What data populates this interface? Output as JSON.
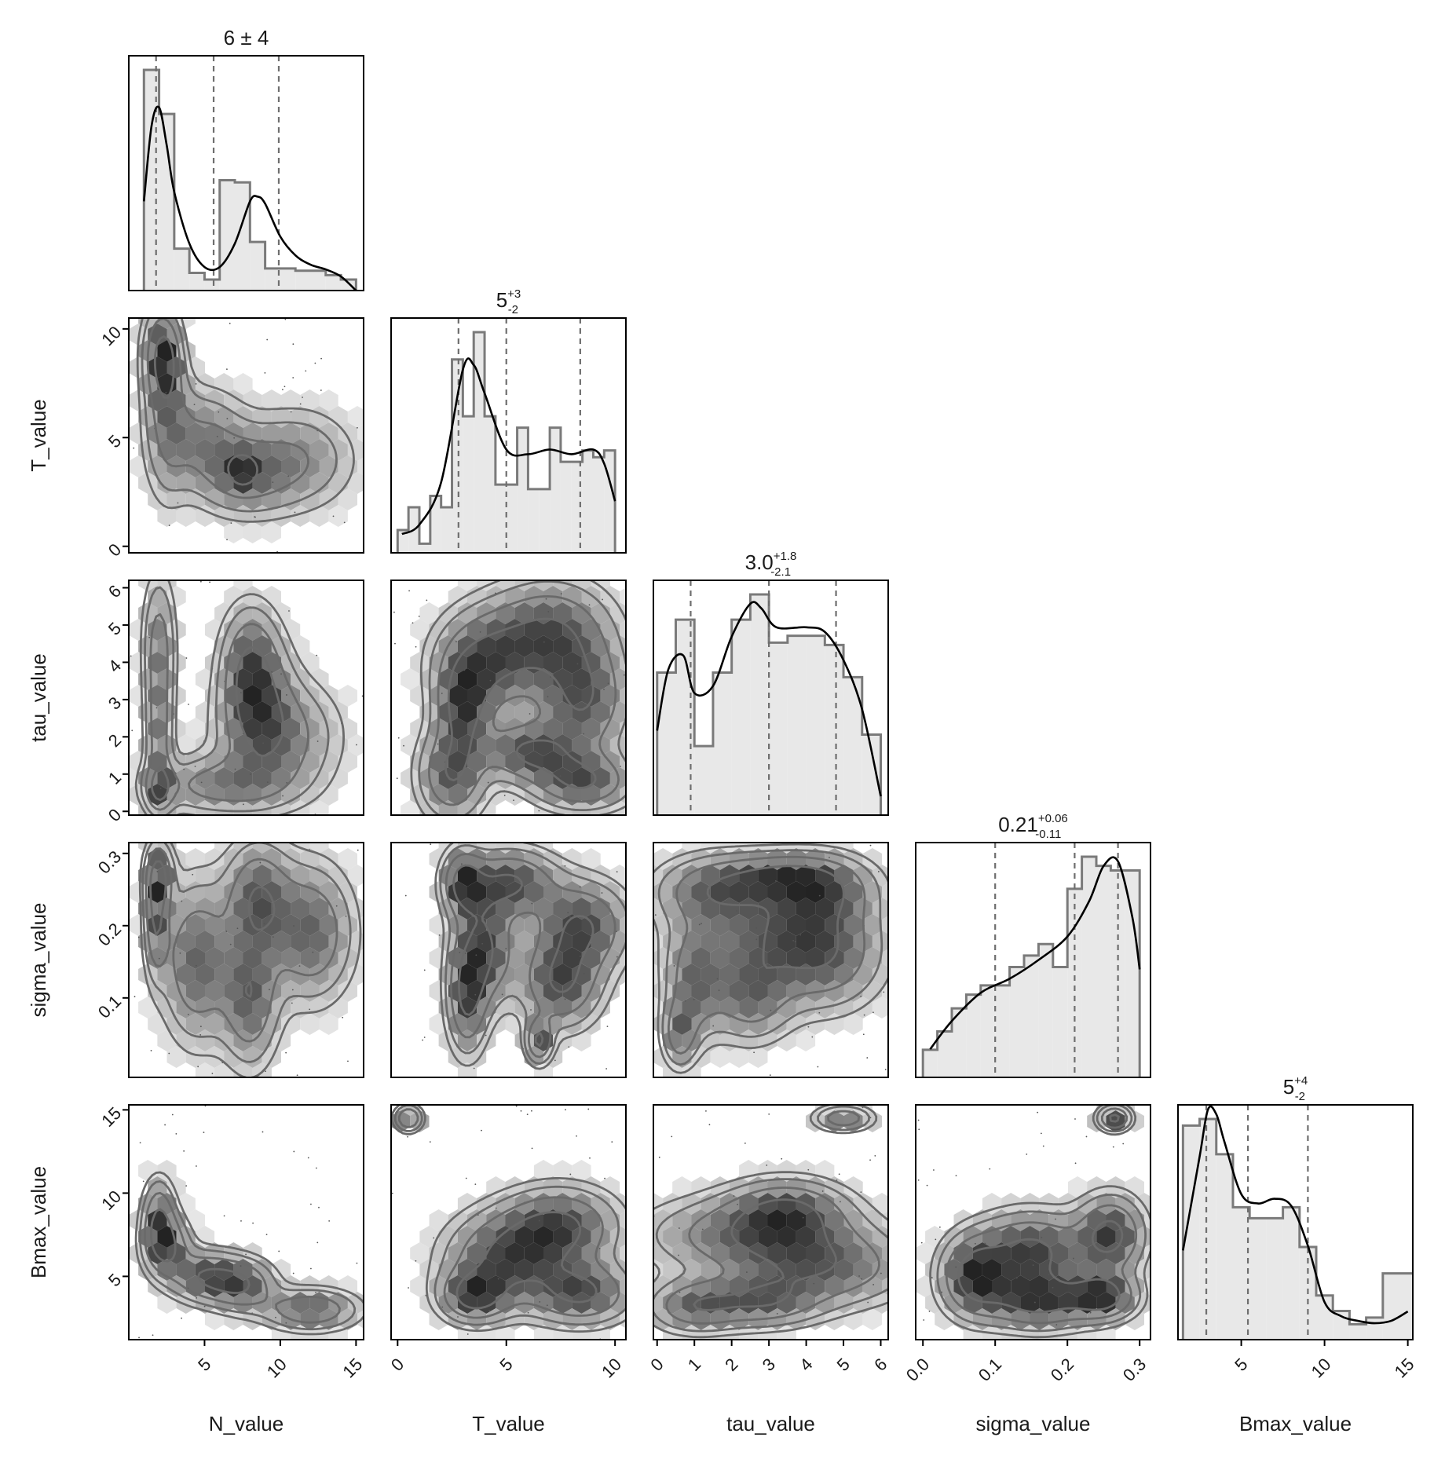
{
  "chart_data": {
    "type": "corner",
    "parameters": [
      {
        "name": "N_value",
        "range": [
          0.0,
          15.5
        ],
        "ticks": [
          5,
          10,
          15
        ],
        "tick_labels": [
          "5",
          "10",
          "15"
        ]
      },
      {
        "name": "T_value",
        "range": [
          -0.3,
          10.5
        ],
        "ticks": [
          0,
          5,
          10
        ],
        "tick_labels": [
          "0",
          "5",
          "10"
        ]
      },
      {
        "name": "tau_value",
        "range": [
          -0.1,
          6.2
        ],
        "ticks": [
          0,
          1,
          2,
          3,
          4,
          5,
          6
        ],
        "tick_labels": [
          "0",
          "1",
          "2",
          "3",
          "4",
          "5",
          "6"
        ]
      },
      {
        "name": "sigma_value",
        "range": [
          -0.01,
          0.315
        ],
        "ticks": [
          0.0,
          0.1,
          0.2,
          0.3
        ],
        "tick_labels": [
          "0.0",
          "0.1",
          "0.2",
          "0.3"
        ]
      },
      {
        "name": "Bmax_value",
        "range": [
          1.2,
          15.3
        ],
        "ticks": [
          5,
          10,
          15
        ],
        "tick_labels": [
          "5",
          "10",
          "15"
        ]
      }
    ],
    "row_tick_labels": {
      "T_value": {
        "ticks": [
          0,
          5,
          10
        ],
        "tick_labels": [
          "0",
          "5",
          "10"
        ]
      },
      "tau_value": {
        "ticks": [
          0,
          1,
          2,
          3,
          4,
          5,
          6
        ],
        "tick_labels": [
          "0",
          "1",
          "2",
          "3",
          "4",
          "5",
          "6"
        ]
      },
      "sigma_value": {
        "ticks": [
          0.1,
          0.2,
          0.3
        ],
        "tick_labels": [
          "0.1",
          "0.2",
          "0.3"
        ]
      },
      "Bmax_value": {
        "ticks": [
          5,
          10,
          15
        ],
        "tick_labels": [
          "5",
          "10",
          "15"
        ]
      }
    },
    "diagonal_titles": [
      {
        "main": "6 ± 4",
        "plus": "",
        "minus": ""
      },
      {
        "main": "5",
        "plus": "+3",
        "minus": "-2"
      },
      {
        "main": "3.0",
        "plus": "+1.8",
        "minus": "-2.1"
      },
      {
        "main": "0.21",
        "plus": "+0.06",
        "minus": "-0.11"
      },
      {
        "main": "5",
        "plus": "+4",
        "minus": "-2"
      }
    ],
    "quantiles": [
      [
        1.8,
        5.6,
        9.9
      ],
      [
        2.8,
        5.0,
        8.4
      ],
      [
        0.9,
        3.0,
        4.8
      ],
      [
        0.1,
        0.21,
        0.27
      ],
      [
        2.9,
        5.4,
        9.0
      ]
    ],
    "histograms": [
      {
        "edges": [
          1,
          2,
          3,
          4,
          5,
          6,
          7,
          8,
          9,
          10,
          11,
          12,
          13,
          14,
          15
        ],
        "counts": [
          1.0,
          0.8,
          0.19,
          0.08,
          0.05,
          0.5,
          0.49,
          0.22,
          0.1,
          0.1,
          0.09,
          0.09,
          0.07,
          0.05
        ]
      },
      {
        "edges": [
          0,
          0.5,
          1,
          1.5,
          2,
          2.5,
          3,
          3.5,
          4,
          4.5,
          5,
          5.5,
          6,
          6.5,
          7,
          7.5,
          8,
          8.5,
          9,
          9.5,
          10
        ],
        "counts": [
          0.1,
          0.2,
          0.04,
          0.25,
          0.2,
          0.85,
          0.6,
          0.97,
          0.6,
          0.3,
          0.3,
          0.55,
          0.28,
          0.28,
          0.55,
          0.4,
          0.4,
          0.45,
          0.42,
          0.45
        ]
      },
      {
        "edges": [
          0,
          0.5,
          1,
          1.5,
          2,
          2.5,
          3,
          3.5,
          4,
          4.5,
          5,
          5.5,
          6
        ],
        "counts": [
          0.62,
          0.85,
          0.3,
          0.62,
          0.85,
          0.96,
          0.75,
          0.78,
          0.78,
          0.74,
          0.6,
          0.35
        ]
      },
      {
        "edges": [
          0,
          0.02,
          0.04,
          0.06,
          0.08,
          0.1,
          0.12,
          0.14,
          0.16,
          0.18,
          0.2,
          0.22,
          0.24,
          0.26,
          0.28,
          0.3
        ],
        "counts": [
          0.12,
          0.2,
          0.3,
          0.36,
          0.4,
          0.4,
          0.48,
          0.53,
          0.58,
          0.48,
          0.82,
          0.96,
          0.92,
          0.9,
          0.9
        ]
      },
      {
        "edges": [
          1.5,
          2.5,
          3.5,
          4.5,
          5.5,
          6.5,
          7.5,
          8.5,
          9.5,
          10.5,
          11.5,
          12.5,
          13.5,
          14.5,
          15.5
        ],
        "counts": [
          0.97,
          1.0,
          0.84,
          0.6,
          0.55,
          0.55,
          0.6,
          0.42,
          0.2,
          0.13,
          0.07,
          0.1,
          0.3,
          0.3
        ]
      }
    ],
    "kde_curves": [
      {
        "x": [
          1,
          1.5,
          2,
          2.5,
          3,
          4,
          5,
          6,
          7,
          8,
          8.5,
          9,
          10,
          11,
          12,
          13,
          14,
          15
        ],
        "y": [
          0.38,
          0.7,
          0.78,
          0.62,
          0.42,
          0.2,
          0.1,
          0.1,
          0.2,
          0.38,
          0.4,
          0.37,
          0.23,
          0.15,
          0.11,
          0.09,
          0.06,
          0.0
        ]
      },
      {
        "x": [
          0.2,
          1,
          2,
          3,
          3.5,
          4,
          5,
          6,
          7,
          8,
          9,
          9.5,
          10
        ],
        "y": [
          0.08,
          0.12,
          0.3,
          0.78,
          0.8,
          0.68,
          0.44,
          0.42,
          0.44,
          0.42,
          0.44,
          0.38,
          0.22
        ]
      },
      {
        "x": [
          0,
          0.3,
          0.7,
          1,
          1.5,
          2,
          2.5,
          2.8,
          3.2,
          4,
          4.5,
          5,
          5.5,
          6
        ],
        "y": [
          0.36,
          0.62,
          0.68,
          0.52,
          0.55,
          0.76,
          0.9,
          0.88,
          0.8,
          0.8,
          0.78,
          0.66,
          0.45,
          0.08
        ]
      },
      {
        "x": [
          0.01,
          0.04,
          0.08,
          0.12,
          0.16,
          0.2,
          0.23,
          0.25,
          0.27,
          0.29,
          0.3
        ],
        "y": [
          0.12,
          0.24,
          0.36,
          0.42,
          0.5,
          0.6,
          0.75,
          0.9,
          0.92,
          0.68,
          0.46
        ]
      },
      {
        "x": [
          1.5,
          2.5,
          3,
          3.5,
          4,
          5,
          6,
          7,
          8,
          9,
          10,
          11,
          12,
          13,
          14,
          15
        ],
        "y": [
          0.38,
          0.78,
          0.98,
          0.96,
          0.84,
          0.62,
          0.58,
          0.6,
          0.57,
          0.4,
          0.16,
          0.1,
          0.08,
          0.07,
          0.08,
          0.12
        ]
      }
    ],
    "density_modes": [
      {
        "row": 1,
        "col": 0,
        "modes": [
          [
            2,
            9,
            0.8,
            1.5
          ],
          [
            2.5,
            8.5,
            0.6,
            1.2
          ],
          [
            7.5,
            3.2,
            2.0,
            1.2
          ],
          [
            7.5,
            3.5,
            0.6,
            0.5
          ],
          [
            2.5,
            6,
            1.0,
            2.5
          ],
          [
            5,
            5,
            1.8,
            1.5
          ],
          [
            11,
            4,
            2.5,
            1.5
          ]
        ]
      },
      {
        "row": 2,
        "col": 0,
        "modes": [
          [
            2,
            4.5,
            0.7,
            1.2
          ],
          [
            2,
            2,
            0.6,
            1.2
          ],
          [
            2,
            0.6,
            0.6,
            0.4
          ],
          [
            8,
            4,
            1.2,
            1.0
          ],
          [
            8.5,
            3,
            1.5,
            1.2
          ],
          [
            10,
            2,
            2.5,
            1.0
          ],
          [
            6,
            0.7,
            3.0,
            0.5
          ]
        ]
      },
      {
        "row": 3,
        "col": 0,
        "modes": [
          [
            2,
            0.27,
            0.6,
            0.03
          ],
          [
            1.8,
            0.21,
            0.5,
            0.05
          ],
          [
            8.5,
            0.24,
            1.4,
            0.05
          ],
          [
            8,
            0.1,
            1.2,
            0.06
          ],
          [
            4.5,
            0.15,
            1.5,
            0.07
          ],
          [
            12,
            0.19,
            1.8,
            0.06
          ]
        ]
      },
      {
        "row": 4,
        "col": 0,
        "modes": [
          [
            2,
            8.5,
            0.7,
            1.5
          ],
          [
            2.5,
            6.8,
            1.0,
            1.2
          ],
          [
            7.5,
            4.5,
            1.4,
            1.0
          ],
          [
            12,
            3,
            2.0,
            0.8
          ],
          [
            5,
            5,
            1.5,
            1.0
          ]
        ]
      },
      {
        "row": 2,
        "col": 1,
        "modes": [
          [
            3,
            2.8,
            0.8,
            0.8
          ],
          [
            2.5,
            1,
            1.0,
            0.8
          ],
          [
            4,
            4,
            1.5,
            0.9
          ],
          [
            7,
            4.8,
            1.8,
            0.9
          ],
          [
            8.5,
            3,
            1.4,
            1.0
          ],
          [
            8.5,
            0.8,
            1.5,
            0.5
          ],
          [
            6,
            1.6,
            1.4,
            0.5
          ]
        ]
      },
      {
        "row": 3,
        "col": 1,
        "modes": [
          [
            3,
            0.26,
            0.6,
            0.03
          ],
          [
            3.2,
            0.1,
            0.6,
            0.05
          ],
          [
            5.2,
            0.26,
            1.4,
            0.03
          ],
          [
            4,
            0.17,
            0.9,
            0.05
          ],
          [
            8.5,
            0.2,
            1.4,
            0.04
          ],
          [
            7.5,
            0.12,
            1.2,
            0.04
          ],
          [
            6.5,
            0.04,
            0.4,
            0.02
          ]
        ]
      },
      {
        "row": 4,
        "col": 1,
        "modes": [
          [
            3.5,
            3.8,
            1.0,
            1.0
          ],
          [
            7.5,
            8,
            1.7,
            1.5
          ],
          [
            8.5,
            4,
            1.5,
            1.2
          ],
          [
            5,
            6,
            1.8,
            1.8
          ],
          [
            0.5,
            14.5,
            0.4,
            0.5
          ]
        ]
      },
      {
        "row": 3,
        "col": 2,
        "modes": [
          [
            3.3,
            0.27,
            1.0,
            0.02
          ],
          [
            4.5,
            0.25,
            0.9,
            0.03
          ],
          [
            1.5,
            0.25,
            1.0,
            0.03
          ],
          [
            3,
            0.19,
            1.5,
            0.05
          ],
          [
            1,
            0.12,
            0.5,
            0.05
          ],
          [
            0.6,
            0.05,
            0.3,
            0.03
          ],
          [
            2.5,
            0.1,
            0.7,
            0.04
          ],
          [
            4.5,
            0.16,
            1.0,
            0.05
          ]
        ]
      },
      {
        "row": 4,
        "col": 2,
        "modes": [
          [
            2.8,
            3.5,
            1.0,
            1.0
          ],
          [
            1,
            3.2,
            0.8,
            1.0
          ],
          [
            2.5,
            7.5,
            1.8,
            1.5
          ],
          [
            4.5,
            5.5,
            1.5,
            1.5
          ],
          [
            5,
            14.5,
            0.5,
            0.5
          ],
          [
            3.5,
            9,
            1.0,
            1.2
          ]
        ]
      },
      {
        "row": 4,
        "col": 3,
        "modes": [
          [
            0.25,
            3.8,
            0.03,
            0.9
          ],
          [
            0.16,
            3.5,
            0.05,
            1.1
          ],
          [
            0.26,
            7.5,
            0.03,
            1.5
          ],
          [
            0.15,
            6.5,
            0.05,
            1.5
          ],
          [
            0.265,
            14.5,
            0.015,
            0.5
          ],
          [
            0.07,
            5,
            0.03,
            1.5
          ]
        ]
      }
    ]
  }
}
